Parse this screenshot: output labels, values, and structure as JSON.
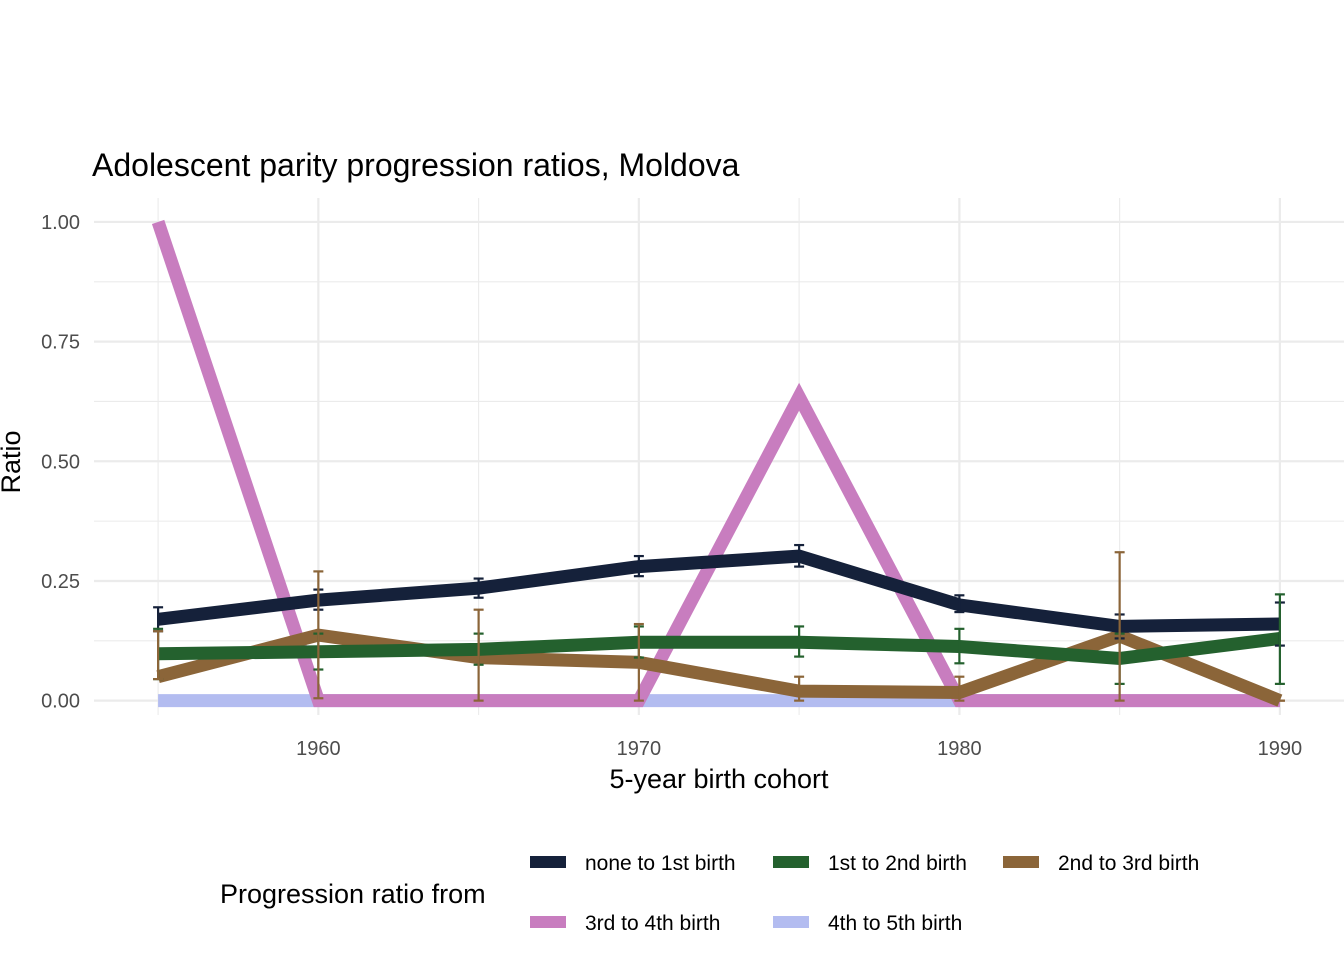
{
  "chart_data": {
    "type": "line",
    "title": "Adolescent parity progression ratios,  Moldova",
    "xlabel": "5-year birth cohort",
    "ylabel": "Ratio",
    "x": [
      1955,
      1960,
      1965,
      1970,
      1975,
      1980,
      1985,
      1990
    ],
    "xlim": [
      1953,
      1992
    ],
    "ylim": [
      -0.03,
      1.05
    ],
    "x_ticks": [
      1960,
      1970,
      1980,
      1990
    ],
    "x_tick_labels": [
      "1960",
      "1970",
      "1980",
      "1990"
    ],
    "y_ticks": [
      0,
      0.25,
      0.5,
      0.75,
      1
    ],
    "y_tick_labels": [
      "0.00",
      "0.25",
      "0.50",
      "0.75",
      "1.00"
    ],
    "grid": true,
    "legend": {
      "title": "Progression ratio from",
      "position": "bottom"
    },
    "series": [
      {
        "name": "none to 1st birth",
        "color": "#15213a",
        "values": [
          0.17,
          0.21,
          0.235,
          0.28,
          0.302,
          0.2,
          0.155,
          0.16
        ],
        "error_low": [
          0.145,
          0.19,
          0.215,
          0.26,
          0.28,
          0.185,
          0.13,
          0.115
        ],
        "error_high": [
          0.195,
          0.232,
          0.255,
          0.302,
          0.325,
          0.22,
          0.18,
          0.205
        ]
      },
      {
        "name": "1st to 2nd birth",
        "color": "#24612e",
        "values": [
          0.098,
          0.102,
          0.107,
          0.122,
          0.122,
          0.113,
          0.088,
          0.13
        ],
        "error_low": [
          0.045,
          0.065,
          0.075,
          0.09,
          0.092,
          0.078,
          0.035,
          0.035
        ],
        "error_high": [
          0.15,
          0.14,
          0.14,
          0.155,
          0.155,
          0.15,
          0.14,
          0.222
        ]
      },
      {
        "name": "2nd to 3rd birth",
        "color": "#8b6539",
        "values": [
          0.05,
          0.137,
          0.09,
          0.08,
          0.02,
          0.017,
          0.135,
          0.0
        ],
        "error_low": [
          0.045,
          0.005,
          0.0,
          0.0,
          0.0,
          0.0,
          0.0,
          0.0
        ],
        "error_high": [
          0.145,
          0.27,
          0.19,
          0.16,
          0.05,
          0.05,
          0.31,
          0.0
        ]
      },
      {
        "name": "3rd to 4th birth",
        "color": "#c87dbf",
        "values": [
          1.0,
          0.0,
          0.0,
          0.0,
          0.635,
          0.0,
          0.0,
          0.0
        ]
      },
      {
        "name": "4th to 5th birth",
        "color": "#b3bcf0",
        "values": [
          0.0,
          0.0,
          0.0,
          0.0,
          0.0,
          0.0,
          0.0,
          0.0
        ]
      }
    ]
  }
}
